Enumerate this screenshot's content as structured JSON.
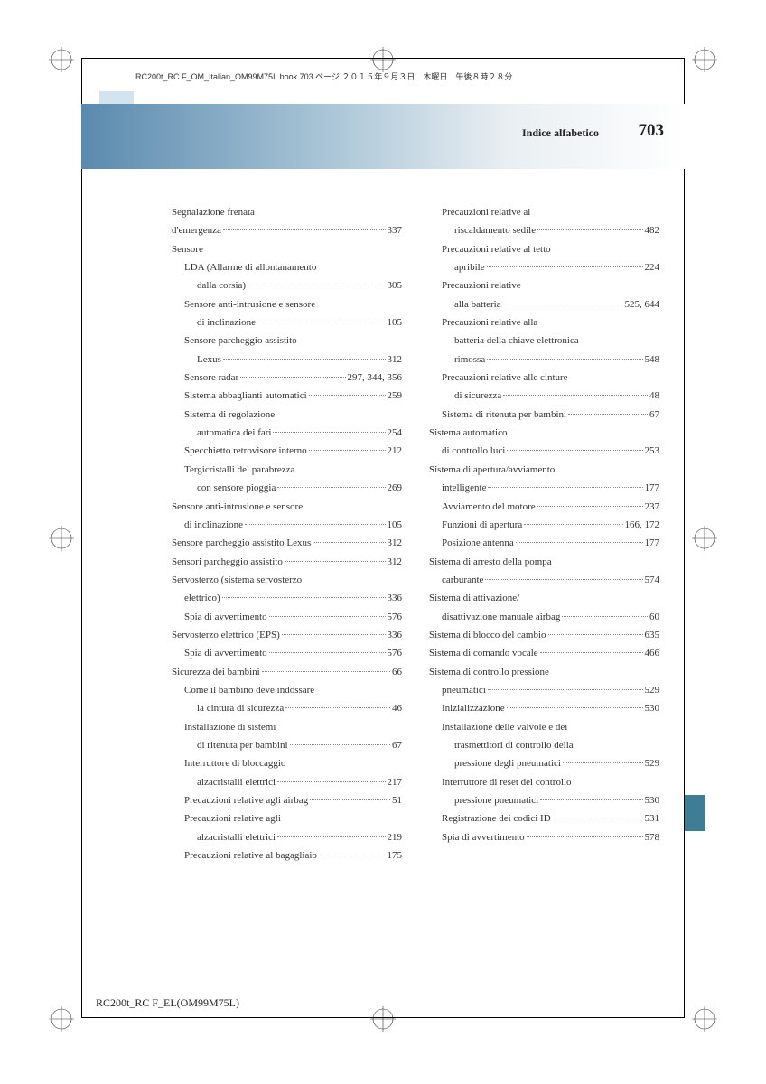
{
  "meta": {
    "crop_info": "RC200t_RC F_OM_Italian_OM99M75L.book  703 ページ  ２０１５年９月３日　木曜日　午後８時２８分",
    "header": "Indice alfabetico",
    "page_number": "703",
    "footer": "RC200t_RC F_EL(OM99M75L)"
  },
  "left": [
    {
      "lv": 0,
      "t": "Segnalazione frenata"
    },
    {
      "lv": 0,
      "t": "d'emergenza",
      "p": "337"
    },
    {
      "lv": 0,
      "t": "Sensore"
    },
    {
      "lv": 1,
      "t": "LDA (Allarme di allontanamento"
    },
    {
      "lv": 2,
      "t": "dalla corsia)",
      "p": "305"
    },
    {
      "lv": 1,
      "t": "Sensore anti-intrusione e sensore"
    },
    {
      "lv": 2,
      "t": "di inclinazione",
      "p": "105"
    },
    {
      "lv": 1,
      "t": "Sensore parcheggio assistito"
    },
    {
      "lv": 2,
      "t": "Lexus",
      "p": "312"
    },
    {
      "lv": 1,
      "t": "Sensore radar",
      "p": "297, 344, 356"
    },
    {
      "lv": 1,
      "t": "Sistema abbaglianti automatici",
      "p": "259"
    },
    {
      "lv": 1,
      "t": "Sistema di regolazione"
    },
    {
      "lv": 2,
      "t": "automatica dei fari",
      "p": "254"
    },
    {
      "lv": 1,
      "t": "Specchietto retrovisore interno",
      "p": "212"
    },
    {
      "lv": 1,
      "t": "Tergicristalli del parabrezza"
    },
    {
      "lv": 2,
      "t": "con sensore pioggia",
      "p": "269"
    },
    {
      "lv": 0,
      "t": "Sensore anti-intrusione e sensore"
    },
    {
      "lv": 1,
      "t": "di inclinazione",
      "p": "105"
    },
    {
      "lv": 0,
      "t": "Sensore parcheggio assistito Lexus",
      "p": "312"
    },
    {
      "lv": 0,
      "t": "Sensori parcheggio assistito",
      "p": "312"
    },
    {
      "lv": 0,
      "t": "Servosterzo (sistema servosterzo"
    },
    {
      "lv": 1,
      "t": "elettrico)",
      "p": "336"
    },
    {
      "lv": 1,
      "t": "Spia di avvertimento",
      "p": "576"
    },
    {
      "lv": 0,
      "t": "Servosterzo elettrico (EPS)",
      "p": "336"
    },
    {
      "lv": 1,
      "t": "Spia di avvertimento",
      "p": "576"
    },
    {
      "lv": 0,
      "t": "Sicurezza dei bambini",
      "p": "66"
    },
    {
      "lv": 1,
      "t": "Come il bambino deve indossare"
    },
    {
      "lv": 2,
      "t": "la cintura di sicurezza",
      "p": "46"
    },
    {
      "lv": 1,
      "t": "Installazione di sistemi"
    },
    {
      "lv": 2,
      "t": "di ritenuta per bambini",
      "p": "67"
    },
    {
      "lv": 1,
      "t": "Interruttore di bloccaggio"
    },
    {
      "lv": 2,
      "t": "alzacristalli elettrici",
      "p": "217"
    },
    {
      "lv": 1,
      "t": "Precauzioni relative agli airbag",
      "p": "51"
    },
    {
      "lv": 1,
      "t": "Precauzioni relative agli"
    },
    {
      "lv": 2,
      "t": "alzacristalli elettrici",
      "p": "219"
    },
    {
      "lv": 1,
      "t": "Precauzioni relative al bagagliaio",
      "p": "175"
    }
  ],
  "right": [
    {
      "lv": 1,
      "t": "Precauzioni relative al"
    },
    {
      "lv": 2,
      "t": "riscaldamento sedile",
      "p": "482"
    },
    {
      "lv": 1,
      "t": "Precauzioni relative al tetto"
    },
    {
      "lv": 2,
      "t": "apribile",
      "p": "224"
    },
    {
      "lv": 1,
      "t": "Precauzioni relative"
    },
    {
      "lv": 2,
      "t": "alla batteria",
      "p": "525, 644"
    },
    {
      "lv": 1,
      "t": "Precauzioni relative alla"
    },
    {
      "lv": 2,
      "t": "batteria della chiave elettronica"
    },
    {
      "lv": 2,
      "t": "rimossa",
      "p": "548"
    },
    {
      "lv": 1,
      "t": "Precauzioni relative alle cinture"
    },
    {
      "lv": 2,
      "t": "di sicurezza",
      "p": "48"
    },
    {
      "lv": 1,
      "t": "Sistema di ritenuta per bambini",
      "p": "67"
    },
    {
      "lv": 0,
      "t": "Sistema automatico"
    },
    {
      "lv": 1,
      "t": "di controllo luci",
      "p": "253"
    },
    {
      "lv": 0,
      "t": "Sistema di apertura/avviamento"
    },
    {
      "lv": 1,
      "t": "intelligente",
      "p": "177"
    },
    {
      "lv": 1,
      "t": "Avviamento del motore",
      "p": "237"
    },
    {
      "lv": 1,
      "t": "Funzioni di apertura",
      "p": "166, 172"
    },
    {
      "lv": 1,
      "t": "Posizione antenna",
      "p": "177"
    },
    {
      "lv": 0,
      "t": "Sistema di arresto della pompa"
    },
    {
      "lv": 1,
      "t": "carburante",
      "p": "574"
    },
    {
      "lv": 0,
      "t": "Sistema di attivazione/"
    },
    {
      "lv": 1,
      "t": "disattivazione manuale airbag",
      "p": "60"
    },
    {
      "lv": 0,
      "t": "Sistema di blocco del cambio",
      "p": "635"
    },
    {
      "lv": 0,
      "t": "Sistema di comando vocale",
      "p": "466"
    },
    {
      "lv": 0,
      "t": "Sistema di controllo pressione"
    },
    {
      "lv": 1,
      "t": "pneumatici",
      "p": "529"
    },
    {
      "lv": 1,
      "t": "Inizializzazione",
      "p": "530"
    },
    {
      "lv": 1,
      "t": "Installazione delle valvole e dei"
    },
    {
      "lv": 2,
      "t": "trasmettitori di controllo della"
    },
    {
      "lv": 2,
      "t": "pressione degli pneumatici",
      "p": "529"
    },
    {
      "lv": 1,
      "t": "Interruttore di reset del controllo"
    },
    {
      "lv": 2,
      "t": "pressione pneumatici",
      "p": "530"
    },
    {
      "lv": 1,
      "t": "Registrazione dei codici ID",
      "p": "531"
    },
    {
      "lv": 1,
      "t": "Spia di avvertimento",
      "p": "578"
    }
  ]
}
